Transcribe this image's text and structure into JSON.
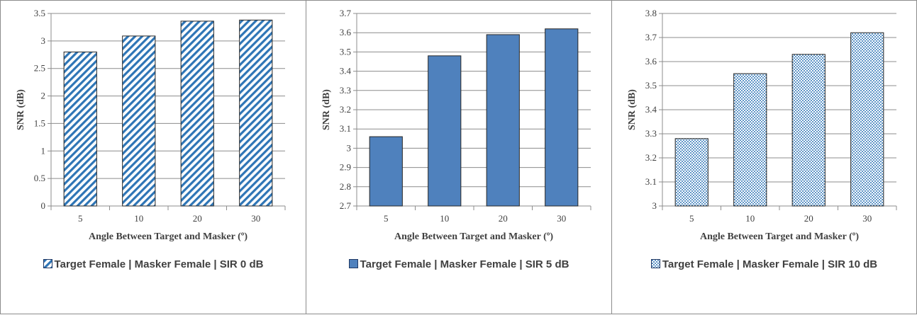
{
  "chart_data": [
    {
      "type": "bar",
      "categories": [
        "5",
        "10",
        "20",
        "30"
      ],
      "series": [
        {
          "name": "Target Female | Masker Female | SIR 0 dB",
          "values": [
            2.8,
            3.09,
            3.36,
            3.38
          ]
        }
      ],
      "xlabel": "Angle Between Target and Masker (º)",
      "ylabel": "SNR (dB)",
      "ylim": [
        0,
        3.5
      ],
      "yticks": [
        "0",
        "0.5",
        "1",
        "1.5",
        "2",
        "2.5",
        "3",
        "3.5"
      ],
      "grid": true,
      "legend_position": "bottom",
      "fill_style": "diagonal-stripes",
      "color": "#2e75b6"
    },
    {
      "type": "bar",
      "categories": [
        "5",
        "10",
        "20",
        "30"
      ],
      "series": [
        {
          "name": "Target Female | Masker Female | SIR 5 dB",
          "values": [
            3.06,
            3.48,
            3.59,
            3.62
          ]
        }
      ],
      "xlabel": "Angle Between Target and Masker (º)",
      "ylabel": "SNR (dB)",
      "ylim": [
        2.7,
        3.7
      ],
      "yticks": [
        "2.7",
        "2.8",
        "2.9",
        "3",
        "3.1",
        "3.2",
        "3.3",
        "3.4",
        "3.5",
        "3.6",
        "3.7"
      ],
      "grid": true,
      "legend_position": "bottom",
      "fill_style": "solid",
      "color": "#4f81bd"
    },
    {
      "type": "bar",
      "categories": [
        "5",
        "10",
        "20",
        "30"
      ],
      "series": [
        {
          "name": "Target Female | Masker Female | SIR 10 dB",
          "values": [
            3.28,
            3.55,
            3.63,
            3.72
          ]
        }
      ],
      "xlabel": "Angle Between Target and Masker (º)",
      "ylabel": "SNR (dB)",
      "ylim": [
        3,
        3.8
      ],
      "yticks": [
        "3",
        "3.1",
        "3.2",
        "3.3",
        "3.4",
        "3.5",
        "3.6",
        "3.7",
        "3.8"
      ],
      "grid": true,
      "legend_position": "bottom",
      "fill_style": "dots",
      "color": "#2e75b6"
    }
  ]
}
